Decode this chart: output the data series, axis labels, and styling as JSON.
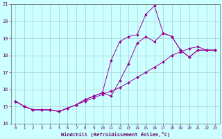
{
  "xlabel": "Windchill (Refroidissement éolien,°C)",
  "bg_color": "#ccffff",
  "grid_color": "#aacccc",
  "line_color": "#990099",
  "xlim": [
    -0.5,
    23.5
  ],
  "ylim": [
    14,
    21
  ],
  "yticks": [
    14,
    15,
    16,
    17,
    18,
    19,
    20,
    21
  ],
  "xticks": [
    0,
    1,
    2,
    3,
    4,
    5,
    6,
    7,
    8,
    9,
    10,
    11,
    12,
    13,
    14,
    15,
    16,
    17,
    18,
    19,
    20,
    21,
    22,
    23
  ],
  "series": [
    {
      "x": [
        0,
        1,
        2,
        3,
        4,
        5,
        6,
        7,
        8,
        9,
        10,
        11,
        12,
        13,
        14,
        15,
        16,
        17,
        18,
        19,
        20,
        21,
        22,
        23
      ],
      "y": [
        15.3,
        15.0,
        14.8,
        14.8,
        14.8,
        14.7,
        14.9,
        15.1,
        15.3,
        15.5,
        15.7,
        15.9,
        16.1,
        16.4,
        16.7,
        17.0,
        17.3,
        17.6,
        18.0,
        18.2,
        18.4,
        18.5,
        18.3,
        18.3
      ]
    },
    {
      "x": [
        0,
        1,
        2,
        3,
        4,
        5,
        6,
        7,
        8,
        9,
        10,
        11,
        12,
        13,
        14,
        15,
        16,
        17,
        18,
        19,
        20,
        21,
        22,
        23
      ],
      "y": [
        15.3,
        15.0,
        14.8,
        14.8,
        14.8,
        14.7,
        14.9,
        15.1,
        15.4,
        15.6,
        15.8,
        17.7,
        18.8,
        19.1,
        19.2,
        20.4,
        20.9,
        19.3,
        19.1,
        18.3,
        17.9,
        18.3,
        18.3,
        18.3
      ]
    },
    {
      "x": [
        0,
        1,
        2,
        3,
        4,
        5,
        6,
        7,
        8,
        9,
        10,
        11,
        12,
        13,
        14,
        15,
        16,
        17,
        18,
        19,
        20,
        21,
        22,
        23
      ],
      "y": [
        15.3,
        15.0,
        14.8,
        14.8,
        14.8,
        14.7,
        14.9,
        15.1,
        15.4,
        15.6,
        15.8,
        15.6,
        16.5,
        17.5,
        18.7,
        19.1,
        18.8,
        19.3,
        19.1,
        18.3,
        17.9,
        18.3,
        18.3,
        18.3
      ]
    }
  ]
}
